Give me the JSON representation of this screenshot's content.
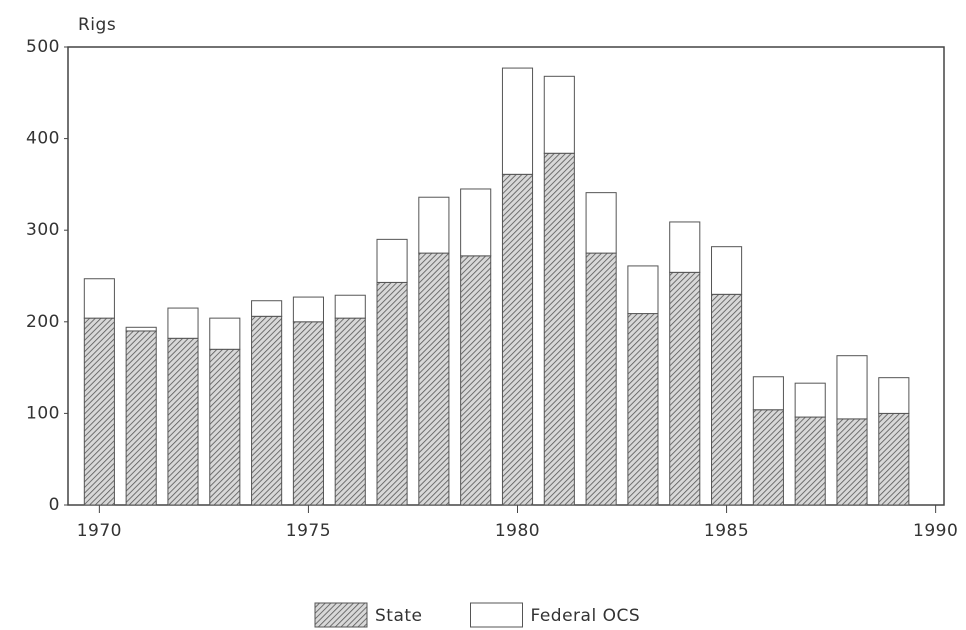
{
  "chart_data": {
    "type": "bar",
    "stacked": true,
    "y_label": "Rigs",
    "x": [
      1970,
      1971,
      1972,
      1973,
      1974,
      1975,
      1976,
      1977,
      1978,
      1979,
      1980,
      1981,
      1982,
      1983,
      1984,
      1985,
      1986,
      1987,
      1988,
      1989
    ],
    "series": [
      {
        "name": "State",
        "color": "#555555",
        "pattern": "hatch",
        "values": [
          204,
          190,
          182,
          170,
          206,
          200,
          204,
          243,
          275,
          272,
          361,
          384,
          275,
          209,
          254,
          230,
          104,
          96,
          94,
          100
        ]
      },
      {
        "name": "Federal OCS",
        "color": "#ffffff",
        "values": [
          43,
          4,
          33,
          34,
          17,
          27,
          25,
          47,
          61,
          73,
          116,
          84,
          66,
          52,
          55,
          52,
          36,
          37,
          69,
          39
        ]
      }
    ],
    "xlim": [
      1969.25,
      1990.2
    ],
    "xticks": [
      1970,
      1975,
      1980,
      1985,
      1990
    ],
    "ylim": [
      0,
      500
    ],
    "yticks": [
      0,
      100,
      200,
      300,
      400,
      500
    ],
    "grid": false,
    "legend": "bottom"
  }
}
